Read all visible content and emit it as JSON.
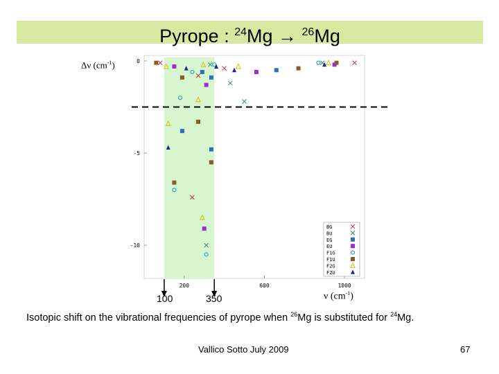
{
  "slide": {
    "title_prefix": "Pyrope : ",
    "iso1_mass": "24",
    "iso1_el": "Mg",
    "arrow": " → ",
    "iso2_mass": "26",
    "iso2_el": "Mg",
    "footer_left": "Vallico Sotto  July 2009",
    "page_number": "67",
    "colors": {
      "title_band": "#d9e8a0",
      "highlight": "#d7f5cf"
    }
  },
  "caption": {
    "part1": "Isotopic shift  on the vibrational frequencies  of pyrope when ",
    "mass1": "26",
    "el1": "Mg is substituted for ",
    "mass2": "24",
    "el2": "Mg."
  },
  "annotations": {
    "ylabel_main": "Δν (cm",
    "ylabel_exp": "-1",
    "ylabel_close": ")",
    "xlabel_main": "ν (cm",
    "xlabel_exp": "-1",
    "xlabel_close": ")",
    "arrow_left_label": "100",
    "arrow_right_label": "350"
  },
  "chart_data": {
    "type": "scatter",
    "xlim": [
      0,
      1100
    ],
    "ylim": [
      -11.8,
      0.3
    ],
    "xticks": [
      200,
      600,
      1000
    ],
    "yticks": [
      0,
      -5,
      -10
    ],
    "xtick_labels": [
      "200",
      "600",
      "1000"
    ],
    "ytick_labels": [
      "0",
      "-5",
      "-10"
    ],
    "highlight_range": [
      100,
      350
    ],
    "threshold_y": -2.5,
    "grid": false,
    "legend_position": "bottom-right",
    "series": [
      {
        "name": "BG",
        "marker": "x",
        "color": "#c0304a",
        "x": [
          80,
          270,
          400,
          1050,
          240
        ],
        "y": [
          -0.1,
          -0.8,
          -0.4,
          -0.1,
          -7.4
        ]
      },
      {
        "name": "BU",
        "marker": "x",
        "color": "#2e8b74",
        "x": [
          330,
          430,
          890,
          500,
          310
        ],
        "y": [
          -0.2,
          -1.2,
          -0.1,
          -2.2,
          -10.0
        ]
      },
      {
        "name": "EG",
        "marker": "square",
        "color": "#2d6fb8",
        "x": [
          290,
          335,
          660,
          190,
          335
        ],
        "y": [
          -0.6,
          -0.9,
          -0.5,
          -3.8,
          -4.8
        ]
      },
      {
        "name": "EU",
        "marker": "square",
        "color": "#9b2fc9",
        "x": [
          150,
          310,
          560,
          950,
          300
        ],
        "y": [
          -0.3,
          -1.3,
          -0.6,
          -0.2,
          -9.1
        ]
      },
      {
        "name": "F1G",
        "marker": "circle",
        "color": "#22a9c4",
        "x": [
          240,
          180,
          350,
          870,
          150,
          310
        ],
        "y": [
          -0.6,
          -2.0,
          -0.2,
          -0.1,
          -7.0,
          -10.5
        ]
      },
      {
        "name": "F1U",
        "marker": "square",
        "color": "#8b5a2b",
        "x": [
          60,
          190,
          270,
          770,
          960,
          150,
          335
        ],
        "y": [
          -0.1,
          -0.9,
          -3.3,
          -0.4,
          -0.1,
          -6.6,
          -5.5
        ]
      },
      {
        "name": "F2G",
        "marker": "triangle",
        "color": "#d4c000",
        "x": [
          110,
          295,
          470,
          920,
          120,
          270,
          290
        ],
        "y": [
          -0.3,
          -0.2,
          -0.3,
          -0.1,
          -3.4,
          -2.1,
          -8.5
        ]
      },
      {
        "name": "F2U",
        "marker": "triangle-filled",
        "color": "#1a2a8a",
        "x": [
          210,
          360,
          450,
          900,
          120
        ],
        "y": [
          -0.4,
          -0.3,
          -0.5,
          -0.2,
          -4.7
        ]
      }
    ]
  }
}
